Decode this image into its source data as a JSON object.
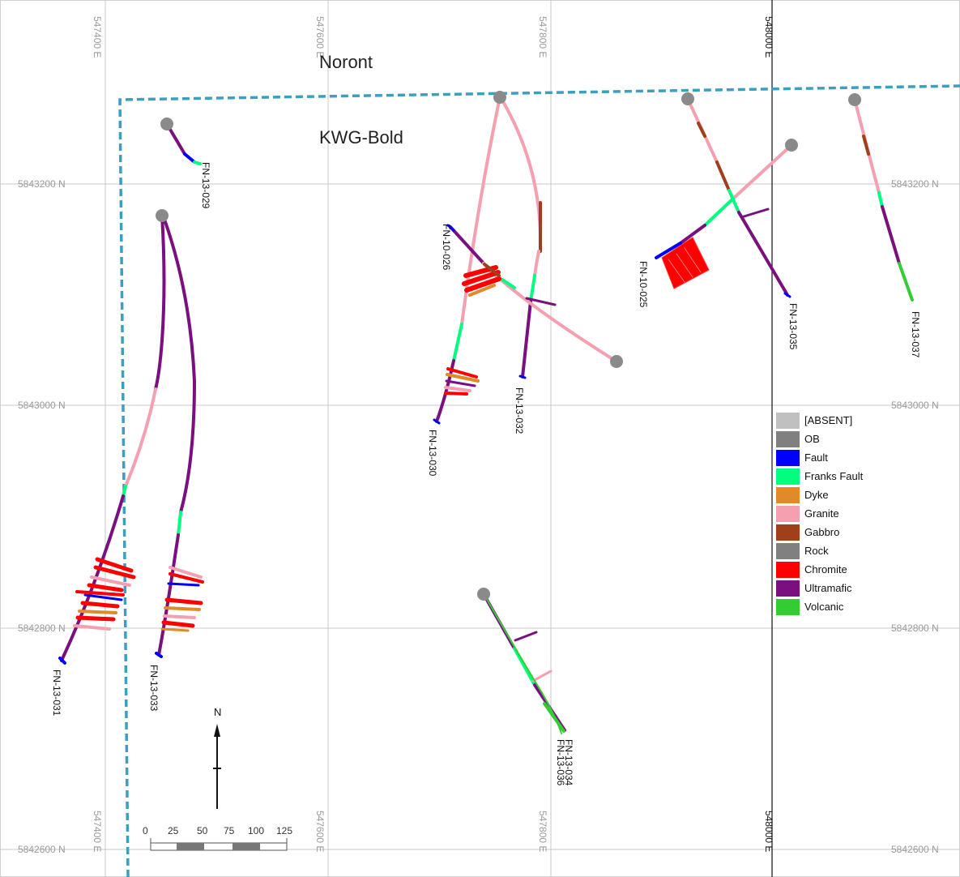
{
  "map": {
    "areas": [
      {
        "id": "noront",
        "label": "Noront"
      },
      {
        "id": "kwg",
        "label": "KWG-Bold"
      }
    ],
    "easting_labels": [
      {
        "value": "547400 E",
        "highlight": false
      },
      {
        "value": "547600 E",
        "highlight": false
      },
      {
        "value": "547800 E",
        "highlight": false
      },
      {
        "value": "548000 E",
        "highlight": true
      }
    ],
    "northing_labels": [
      "5843200 N",
      "5843000 N",
      "5842800 N",
      "5842600 N"
    ],
    "north_arrow": {
      "label": "N"
    },
    "scale_bar": {
      "ticks": [
        "0",
        "25",
        "50",
        "75",
        "100",
        "125"
      ],
      "units": "m"
    },
    "drillholes": [
      {
        "id": "fn13029",
        "label": "FN-13-029"
      },
      {
        "id": "fn13031",
        "label": "FN-13-031"
      },
      {
        "id": "fn13033",
        "label": "FN-13-033"
      },
      {
        "id": "fn10026",
        "label": "FN-10-026"
      },
      {
        "id": "fn13030",
        "label": "FN-13-030"
      },
      {
        "id": "fn13032",
        "label": "FN-13-032"
      },
      {
        "id": "fn10025",
        "label": "FN-10-025"
      },
      {
        "id": "fn13035",
        "label": "FN-13-035"
      },
      {
        "id": "fn13037",
        "label": "FN-13-037"
      },
      {
        "id": "fn13034",
        "label": "FN-13-034"
      },
      {
        "id": "fn13036",
        "label": "FN-13-036"
      }
    ],
    "colors": {
      "boundary": "#3a9fc0",
      "grid": "#c8c8c8",
      "collar": "#8a8a8a"
    }
  },
  "legend": {
    "items": [
      {
        "label": "[ABSENT]",
        "color": "#c0c0c0"
      },
      {
        "label": "OB",
        "color": "#808080"
      },
      {
        "label": "Fault",
        "color": "#0000ff"
      },
      {
        "label": "Franks Fault",
        "color": "#00ff7f"
      },
      {
        "label": "Dyke",
        "color": "#e08a2a"
      },
      {
        "label": "Granite",
        "color": "#f5a0b0"
      },
      {
        "label": "Gabbro",
        "color": "#a0401a"
      },
      {
        "label": "Rock",
        "color": "#808080"
      },
      {
        "label": "Chromite",
        "color": "#ff0000"
      },
      {
        "label": "Ultramafic",
        "color": "#7a0f80"
      },
      {
        "label": "Volcanic",
        "color": "#33cc33"
      }
    ]
  }
}
